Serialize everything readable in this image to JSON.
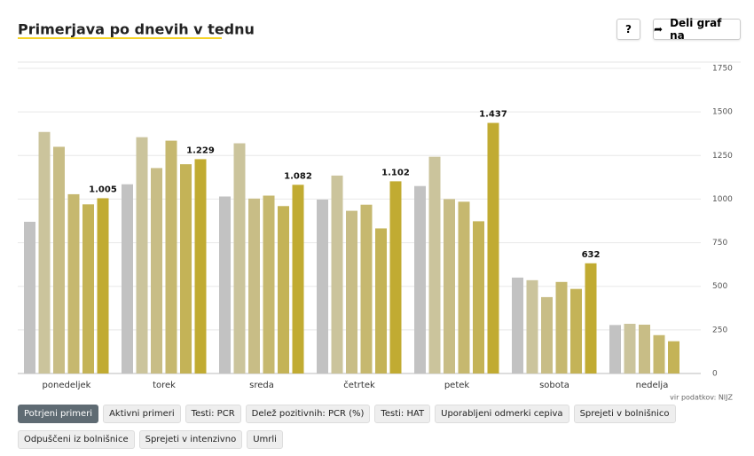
{
  "header": {
    "title": "Primerjava po dnevih v tednu",
    "help": "?",
    "share": "Deli graf na"
  },
  "source": "vir podatkov: NIJZ",
  "tabs": {
    "active": 0,
    "items": [
      "Potrjeni primeri",
      "Aktivni primeri",
      "Testi: PCR",
      "Delež pozitivnih: PCR (%)",
      "Testi: HAT",
      "Uporabljeni odmerki cepiva",
      "Sprejeti v bolnišnico",
      "Odpuščeni iz bolnišnice",
      "Sprejeti v intenzivno",
      "Umrli"
    ]
  },
  "chart_data": {
    "type": "bar",
    "categories": [
      "ponedeljek",
      "torek",
      "sreda",
      "četrtek",
      "petek",
      "sobota",
      "nedelja"
    ],
    "series": [
      {
        "color": "#c2c2c2",
        "values": [
          870,
          1085,
          1015,
          997,
          1075,
          550,
          278
        ]
      },
      {
        "color": "#cbc49c",
        "values": [
          1385,
          1355,
          1320,
          1135,
          1243,
          535,
          285
        ]
      },
      {
        "color": "#c8bd86",
        "values": [
          1300,
          1178,
          1003,
          933,
          1000,
          438,
          280
        ]
      },
      {
        "color": "#c6b86f",
        "values": [
          1028,
          1335,
          1020,
          968,
          985,
          525,
          220
        ]
      },
      {
        "color": "#c4b357",
        "values": [
          970,
          1200,
          960,
          832,
          873,
          485,
          185
        ]
      },
      {
        "color": "#c1ab32",
        "values": [
          1005,
          1229,
          1082,
          1102,
          1437,
          632,
          null
        ],
        "value_labels": [
          "1.005",
          "1.229",
          "1.082",
          "1.102",
          "1.437",
          "632",
          null
        ]
      }
    ],
    "ylim": [
      0,
      1750
    ],
    "yticks": [
      0,
      250,
      500,
      750,
      1000,
      1250,
      1500,
      1750
    ],
    "grid": true
  }
}
